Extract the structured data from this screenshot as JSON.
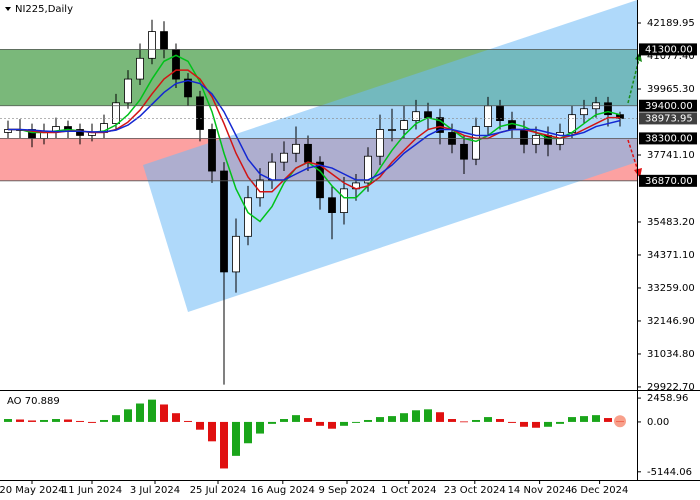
{
  "chart_data": {
    "type": "candlestick",
    "title": "NI225,Daily",
    "open": [
      38500,
      38600,
      38600,
      38300,
      38550,
      38700,
      38600,
      38400,
      38500,
      38800,
      39500,
      40300,
      41000,
      41900,
      41300,
      40300,
      39700,
      38600,
      37200,
      33800,
      35000,
      36300,
      36900,
      37500,
      37800,
      38100,
      37500,
      36300,
      35800,
      36600,
      36800,
      37700,
      38600,
      38600,
      38900,
      39200,
      39000,
      38500,
      38100,
      37600,
      38700,
      39400,
      38900,
      38600,
      38100,
      38400,
      38100,
      38500,
      39100,
      39300,
      39500,
      39100
    ],
    "high": [
      38900,
      38950,
      38800,
      38800,
      39000,
      38900,
      38800,
      38800,
      39100,
      39800,
      40600,
      41500,
      42300,
      42250,
      41500,
      40500,
      39900,
      38800,
      37500,
      35600,
      36700,
      37300,
      37800,
      38200,
      38700,
      38400,
      37700,
      36700,
      37000,
      37100,
      38000,
      39100,
      39300,
      39400,
      39600,
      39500,
      39300,
      38800,
      38400,
      39000,
      39700,
      39600,
      39200,
      38900,
      38700,
      38700,
      38800,
      39400,
      39600,
      39700,
      39700,
      39200
    ],
    "low": [
      38300,
      38300,
      38000,
      38100,
      38300,
      38300,
      38100,
      38200,
      38300,
      38600,
      39300,
      40100,
      40800,
      41000,
      40000,
      39400,
      38200,
      36800,
      30000,
      33100,
      34700,
      36000,
      36600,
      37200,
      37500,
      37200,
      35900,
      34900,
      35400,
      36200,
      36500,
      37400,
      38200,
      38300,
      38600,
      38600,
      38100,
      37800,
      37100,
      37400,
      38400,
      38600,
      38300,
      37800,
      37800,
      37700,
      37900,
      38300,
      38800,
      39000,
      38700,
      38700
    ],
    "close": [
      38600,
      38600,
      38300,
      38550,
      38700,
      38600,
      38400,
      38500,
      38800,
      39500,
      40300,
      41000,
      41900,
      41300,
      40300,
      39700,
      38600,
      37200,
      33800,
      35000,
      36300,
      36900,
      37500,
      37800,
      38100,
      37500,
      36300,
      35800,
      36600,
      36800,
      37700,
      38600,
      38600,
      38900,
      39200,
      39000,
      38500,
      38100,
      37600,
      38700,
      39400,
      38900,
      38600,
      38100,
      38400,
      38100,
      38500,
      39100,
      39300,
      39500,
      39100,
      38973.95
    ],
    "up_color": "#ffffff",
    "down_color": "#000000",
    "moving_averages": [
      {
        "color": "#00c21a",
        "values": [
          38600,
          38600,
          38500,
          38500,
          38550,
          38600,
          38550,
          38500,
          38550,
          38750,
          39100,
          39600,
          40300,
          40900,
          41100,
          40900,
          40200,
          39200,
          37800,
          36600,
          35800,
          35500,
          36000,
          36800,
          37300,
          37500,
          37200,
          36700,
          36300,
          36300,
          36700,
          37300,
          37900,
          38400,
          38800,
          39000,
          38900,
          38600,
          38300,
          38200,
          38400,
          38700,
          38800,
          38700,
          38500,
          38300,
          38300,
          38500,
          38800,
          39100,
          39200,
          39100
        ]
      },
      {
        "color": "#d21414",
        "values": [
          38600,
          38600,
          38550,
          38500,
          38500,
          38550,
          38550,
          38500,
          38500,
          38600,
          38850,
          39250,
          39800,
          40300,
          40600,
          40600,
          40300,
          39700,
          38800,
          37800,
          37000,
          36500,
          36500,
          36900,
          37300,
          37500,
          37400,
          37100,
          36800,
          36600,
          36700,
          37000,
          37500,
          37900,
          38300,
          38600,
          38700,
          38600,
          38400,
          38300,
          38300,
          38500,
          38600,
          38600,
          38500,
          38400,
          38300,
          38400,
          38600,
          38800,
          39000,
          39000
        ]
      },
      {
        "color": "#1428d2",
        "values": [
          38600,
          38600,
          38580,
          38550,
          38530,
          38540,
          38540,
          38520,
          38520,
          38580,
          38750,
          39050,
          39450,
          39850,
          40150,
          40250,
          40150,
          39800,
          39200,
          38400,
          37600,
          37100,
          36900,
          36900,
          37100,
          37300,
          37400,
          37300,
          37100,
          36900,
          36900,
          37100,
          37400,
          37800,
          38100,
          38400,
          38600,
          38600,
          38500,
          38400,
          38400,
          38500,
          38600,
          38600,
          38600,
          38500,
          38400,
          38400,
          38500,
          38700,
          38800,
          38900
        ]
      }
    ],
    "ylim": [
      29820,
      42965
    ],
    "yticks": [
      42189.95,
      {
        "value": 41077.4,
        "label": "41077.40"
      },
      {
        "value": 39965.3,
        "label": "39965.30"
      },
      {
        "value": 37741.1,
        "label": "37741.10"
      },
      {
        "value": 35483.2,
        "label": "35483.20"
      },
      {
        "value": 34371.1,
        "label": "34371.10"
      },
      {
        "value": 33259,
        "label": "33259.00"
      },
      {
        "value": 32146.9,
        "label": "32146.90"
      },
      {
        "value": 31034.8,
        "label": "31034.80"
      },
      {
        "value": 29922.7,
        "label": "29922.70"
      }
    ],
    "xticks": [
      {
        "value": 2,
        "label": "20 May 2024"
      },
      {
        "value": 7,
        "label": "11 Jun 2024"
      },
      {
        "value": 12.25,
        "label": "3 Jul 2024"
      },
      {
        "value": 17.5,
        "label": "25 Jul 2024"
      },
      {
        "value": 22.9,
        "label": "16 Aug 2024"
      },
      {
        "value": 28.25,
        "label": "9 Sep 2024"
      },
      {
        "value": 33.4,
        "label": "1 Oct 2024"
      },
      {
        "value": 38.9,
        "label": "23 Oct 2024"
      },
      {
        "value": 44.3,
        "label": "14 Nov 2024"
      },
      {
        "value": 49.3,
        "label": "6 Dec 2024"
      }
    ],
    "levels": [
      {
        "value": 41300,
        "label": "41300.00"
      },
      {
        "value": 39400,
        "label": "39400.00"
      },
      {
        "value": 38300,
        "label": "38300.00"
      },
      {
        "value": 36870,
        "label": "36870.00"
      }
    ],
    "zones": [
      {
        "top": 41300,
        "bottom": 39400,
        "color": "rgba(40,140,40,0.62)"
      },
      {
        "top": 38300,
        "bottom": 36870,
        "color": "rgba(250,110,110,0.65)"
      }
    ],
    "last_price": 38973.95,
    "indicator": {
      "type": "bar",
      "title": "AO 70.889",
      "values": [
        300,
        250,
        150,
        200,
        300,
        250,
        100,
        -100,
        200,
        700,
        1300,
        1900,
        2300,
        1800,
        900,
        100,
        -800,
        -2000,
        -4800,
        -3500,
        -2200,
        -1200,
        -200,
        300,
        700,
        400,
        -400,
        -700,
        -400,
        -100,
        200,
        500,
        600,
        900,
        1200,
        1300,
        1000,
        300,
        50,
        200,
        500,
        300,
        -100,
        -500,
        -600,
        -500,
        -200,
        500,
        600,
        700,
        400,
        70.889
      ],
      "up_color": "#1aa51a",
      "down_color": "#e01010",
      "ylim": [
        -5990,
        3190
      ],
      "yticks": [
        2458.96,
        {
          "value": 0,
          "label": "0.00"
        },
        -5144.06
      ]
    }
  }
}
